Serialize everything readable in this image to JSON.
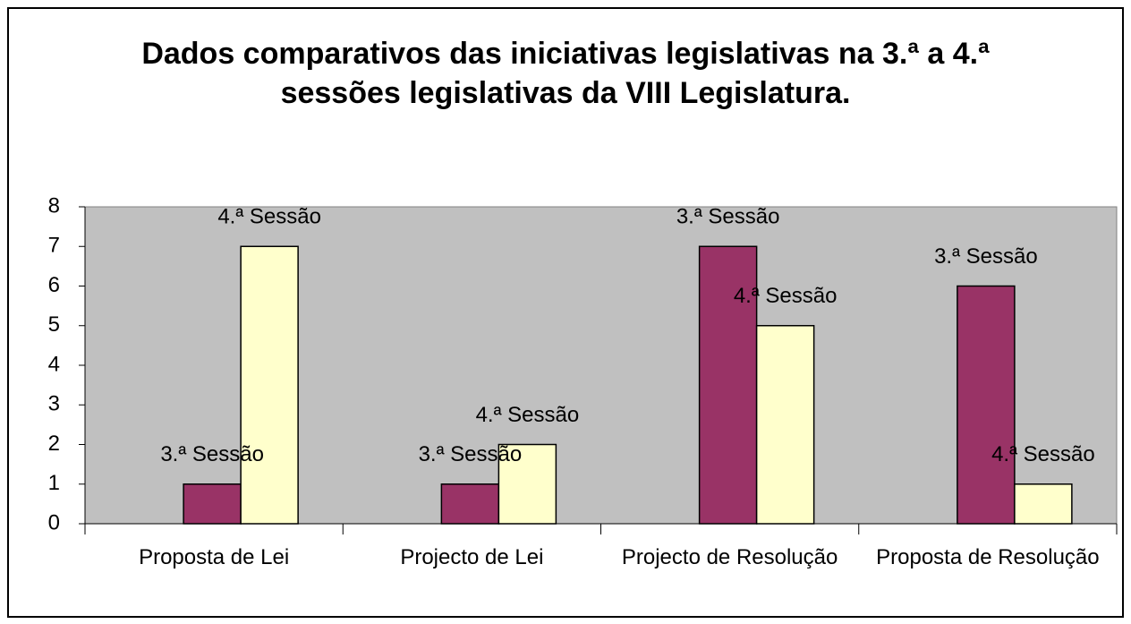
{
  "chart_data": {
    "type": "bar",
    "title": "Dados comparativos das iniciativas legislativas na 3.ª a 4.ª sessões legislativas da VIII Legislatura.",
    "categories": [
      "Proposta de Lei",
      "Projecto de Lei",
      "Projecto de Resolução",
      "Proposta de Resolução"
    ],
    "series": [
      {
        "name": "3.ª Sessão",
        "color": "#993366",
        "values": [
          1,
          1,
          7,
          6
        ]
      },
      {
        "name": "4.ª Sessão",
        "color": "#ffffcc",
        "values": [
          7,
          2,
          5,
          1
        ]
      }
    ],
    "ylim": [
      0,
      8
    ],
    "yticks": [
      0,
      1,
      2,
      3,
      4,
      5,
      6,
      7,
      8
    ],
    "grid": false,
    "plot_background": "#c0c0c0"
  }
}
